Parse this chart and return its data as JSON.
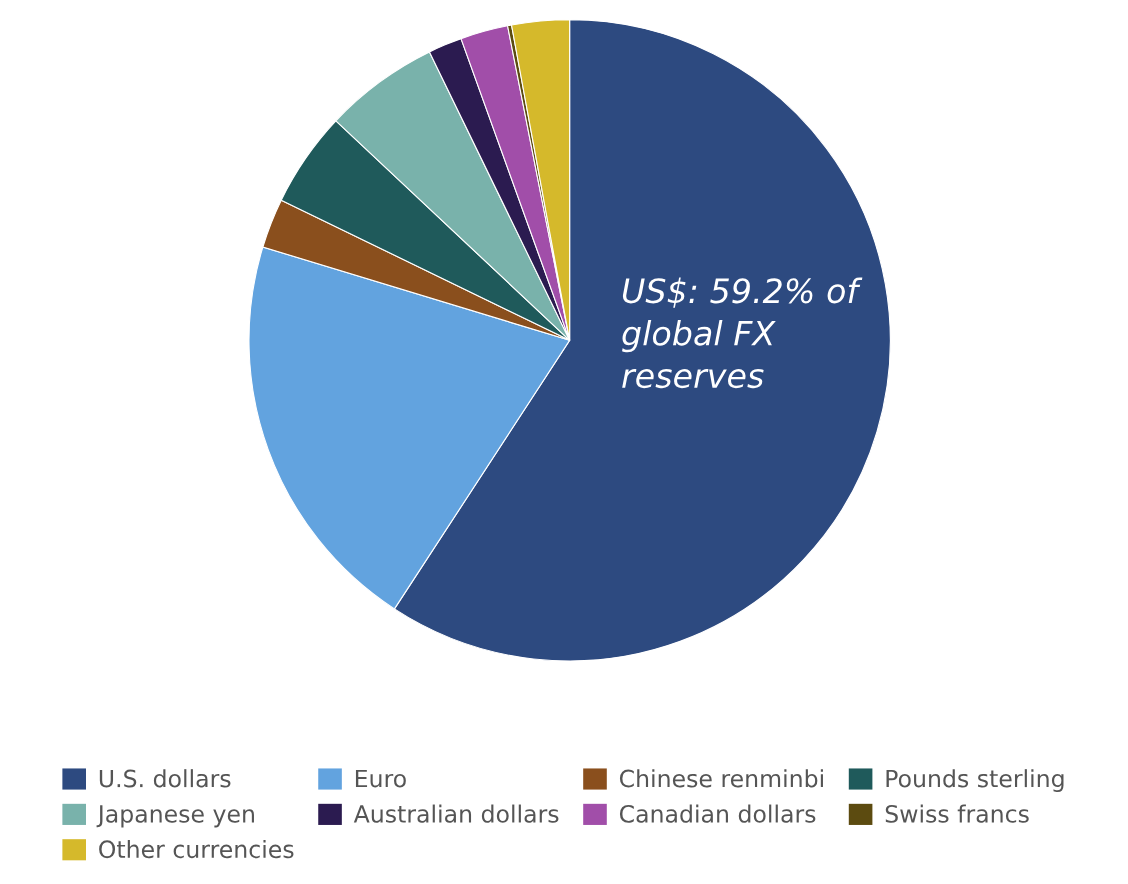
{
  "chart_data": {
    "type": "pie",
    "categories": [
      "U.S. dollars",
      "Euro",
      "Chinese renminbi",
      "Pounds sterling",
      "Japanese yen",
      "Australian dollars",
      "Canadian dollars",
      "Swiss francs",
      "Other currencies"
    ],
    "values": [
      59.2,
      20.5,
      2.5,
      4.8,
      5.8,
      1.7,
      2.4,
      0.2,
      2.9
    ],
    "colors": [
      "#2d4a80",
      "#62a3df",
      "#8a4f1d",
      "#1f5a5b",
      "#79b2ab",
      "#2b1b50",
      "#a14ea9",
      "#5c4b10",
      "#d5b92b"
    ],
    "annotations": [
      "US$: 59.2% of global FX reserves"
    ],
    "legend": "bottom"
  }
}
